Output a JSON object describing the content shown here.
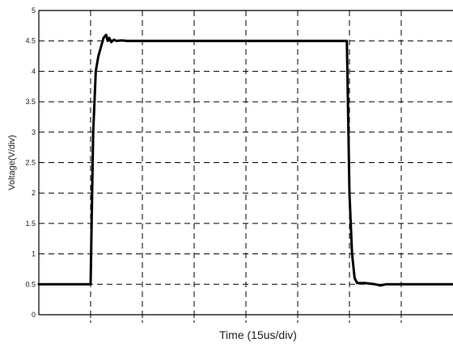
{
  "chart_data": {
    "type": "line",
    "title": "",
    "xlabel": "Time (15us/div)",
    "ylabel": "Voltage(V/div)",
    "ylim": [
      0,
      5
    ],
    "yticks": [
      "0",
      "0.5",
      "1",
      "1.5",
      "2",
      "2.5",
      "3",
      "3.5",
      "4",
      "4.5",
      "5"
    ],
    "xlim": [
      0,
      8
    ],
    "x_unit": "divisions",
    "grid": true,
    "series": [
      {
        "color": "#000000",
        "x": [
          0,
          0.95,
          1.0,
          1.02,
          1.05,
          1.1,
          1.15,
          1.2,
          1.25,
          1.3,
          1.33,
          1.36,
          1.4,
          1.45,
          1.5,
          1.6,
          1.7,
          1.8,
          2.0,
          4.5,
          5.9,
          5.95,
          5.97,
          6.0,
          6.05,
          6.1,
          6.15,
          6.2,
          6.3,
          6.4,
          6.5,
          6.6,
          6.7,
          6.8,
          7.0,
          8.0
        ],
        "y": [
          0.5,
          0.5,
          0.5,
          1.5,
          3.0,
          4.0,
          4.25,
          4.4,
          4.55,
          4.6,
          4.5,
          4.55,
          4.48,
          4.52,
          4.5,
          4.51,
          4.5,
          4.5,
          4.5,
          4.5,
          4.5,
          4.5,
          3.5,
          2.0,
          1.0,
          0.6,
          0.52,
          0.52,
          0.52,
          0.51,
          0.5,
          0.48,
          0.5,
          0.5,
          0.5,
          0.5
        ]
      }
    ]
  }
}
